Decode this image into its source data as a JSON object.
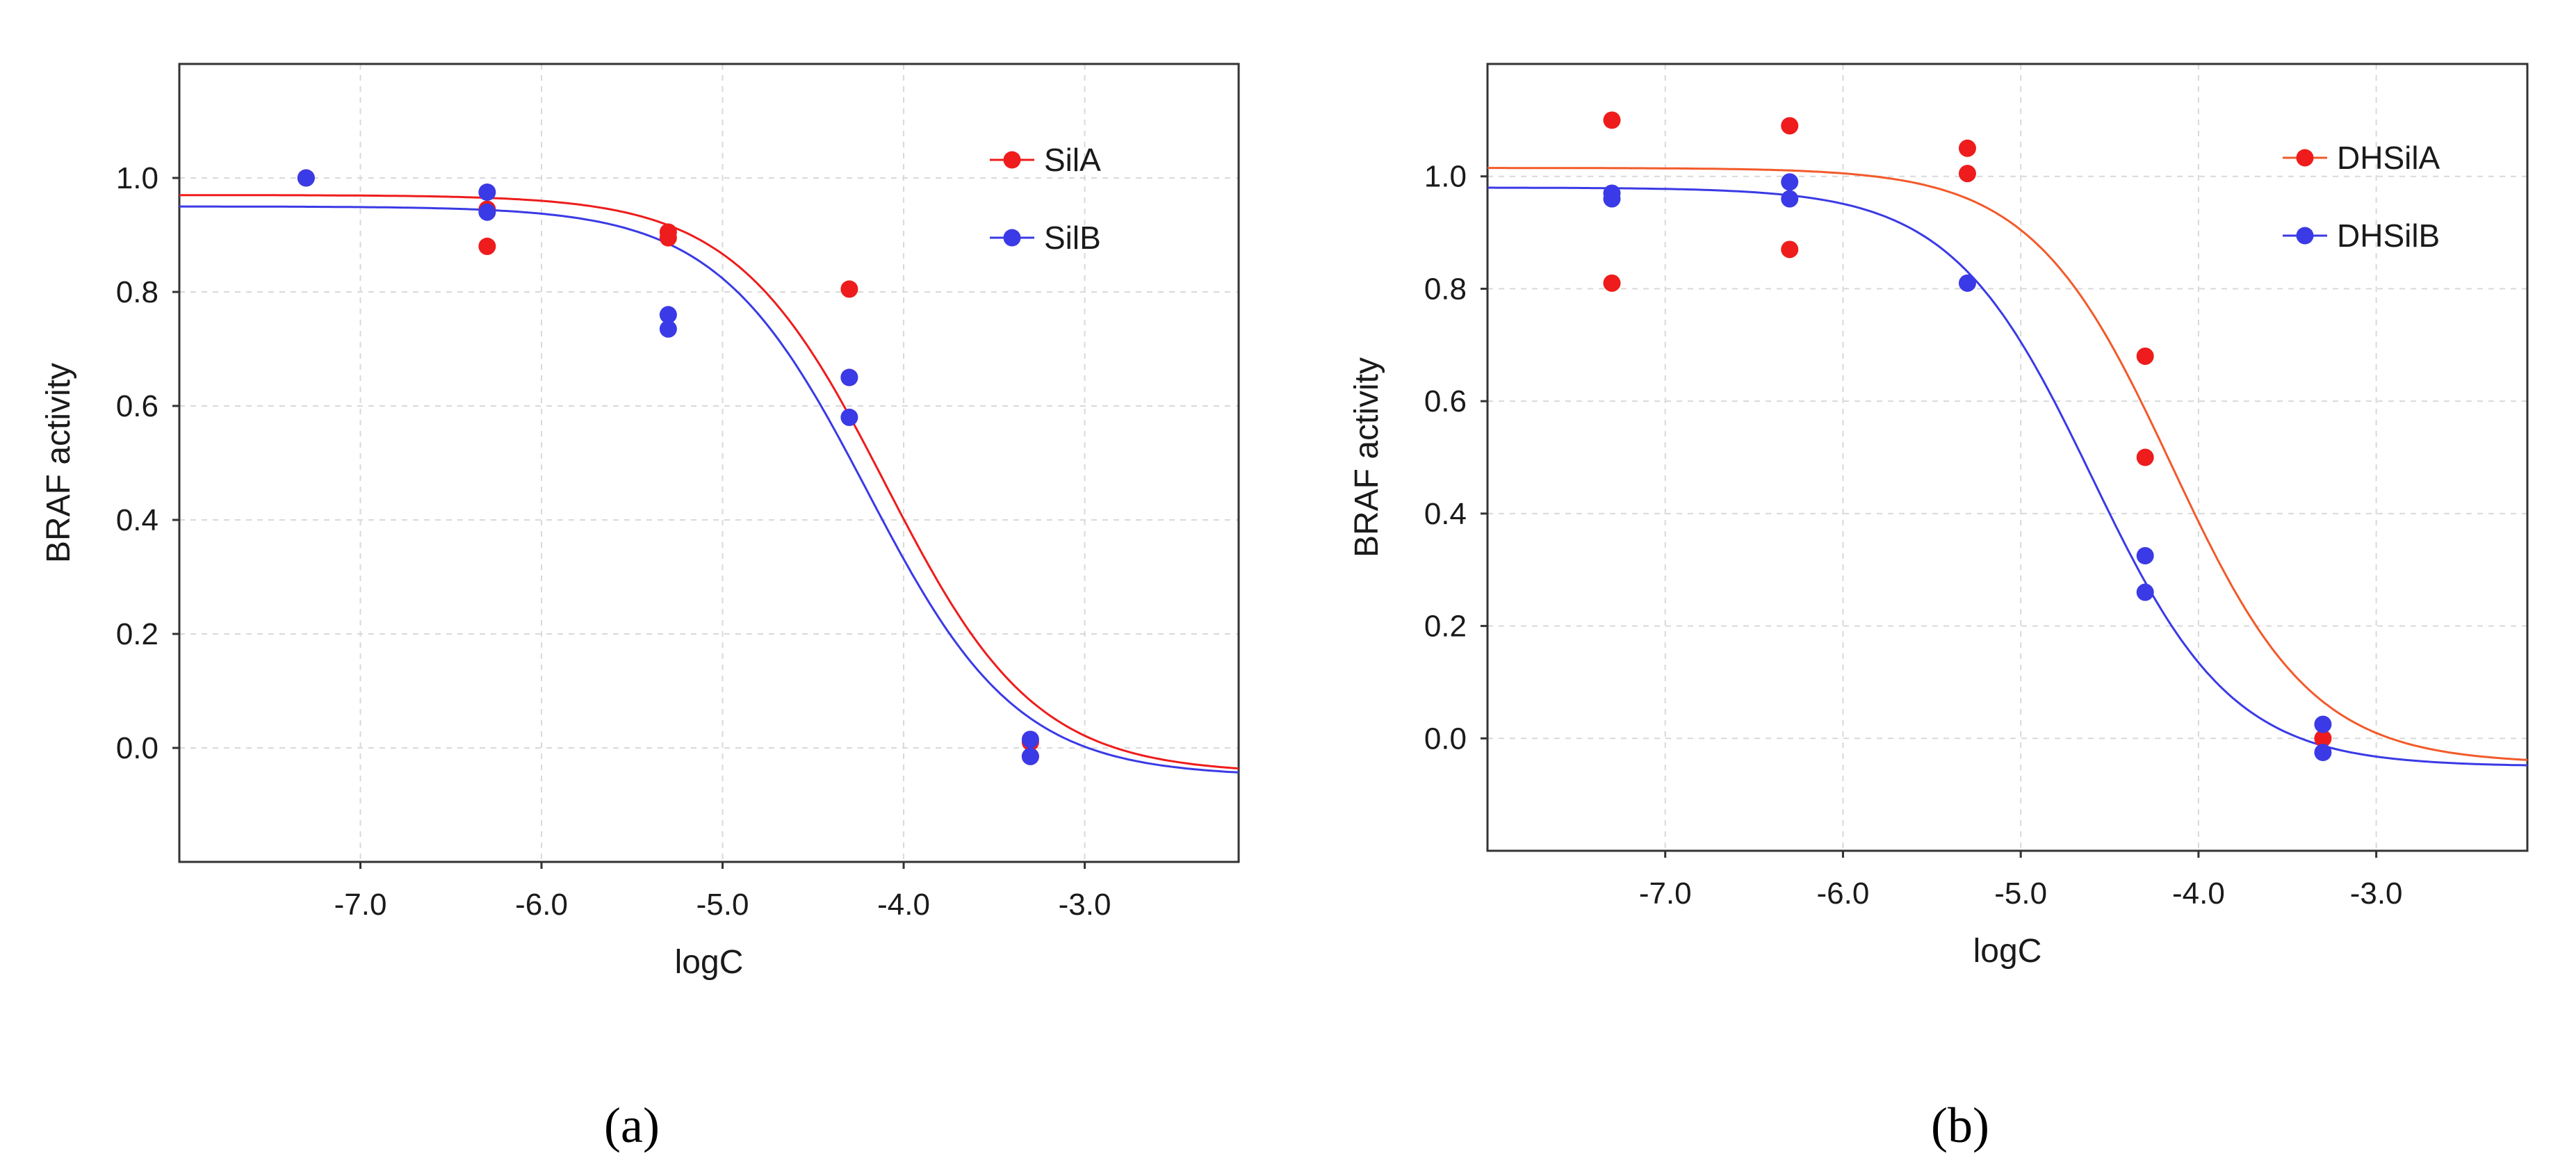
{
  "figure": {
    "panel_labels": [
      "(a)",
      "(b)"
    ]
  },
  "chart_data": [
    {
      "type": "scatter",
      "id": "a",
      "title": "",
      "xlabel": "logC",
      "ylabel": "BRAF activity",
      "xlim": [
        -8.0,
        -2.15
      ],
      "ylim": [
        -0.2,
        1.2
      ],
      "xticks": [
        -7.0,
        -6.0,
        -5.0,
        -4.0,
        -3.0
      ],
      "xtick_labels": [
        "-7.0",
        "-6.0",
        "-5.0",
        "-4.0",
        "-3.0"
      ],
      "yticks": [
        0.0,
        0.2,
        0.4,
        0.6,
        0.8,
        1.0
      ],
      "ytick_labels": [
        "0.0",
        "0.2",
        "0.4",
        "0.6",
        "0.8",
        "1.0"
      ],
      "grid": true,
      "legend_position": "top-right",
      "series": [
        {
          "name": "SilA",
          "color": "#ee1c1c",
          "points": [
            [
              -7.3,
              1.0
            ],
            [
              -6.3,
              0.945
            ],
            [
              -6.3,
              0.88
            ],
            [
              -5.3,
              0.905
            ],
            [
              -5.3,
              0.895
            ],
            [
              -4.3,
              0.805
            ],
            [
              -4.3,
              0.65
            ],
            [
              -3.3,
              0.01
            ],
            [
              -3.3,
              -0.015
            ]
          ],
          "fit": {
            "top": 0.97,
            "bottom": -0.045,
            "logIC50": -4.1,
            "hill": 1.05
          }
        },
        {
          "name": "SilB",
          "color": "#3a3ae6",
          "points": [
            [
              -7.3,
              1.0
            ],
            [
              -6.3,
              0.975
            ],
            [
              -6.3,
              0.94
            ],
            [
              -5.3,
              0.76
            ],
            [
              -5.3,
              0.735
            ],
            [
              -4.3,
              0.65
            ],
            [
              -4.3,
              0.58
            ],
            [
              -3.3,
              0.015
            ],
            [
              -3.3,
              -0.015
            ]
          ],
          "fit": {
            "top": 0.95,
            "bottom": -0.05,
            "logIC50": -4.2,
            "hill": 1.05
          }
        }
      ]
    },
    {
      "type": "scatter",
      "id": "b",
      "title": "",
      "xlabel": "logC",
      "ylabel": "BRAF activity",
      "xlim": [
        -8.0,
        -2.15
      ],
      "ylim": [
        -0.2,
        1.2
      ],
      "xticks": [
        -7.0,
        -6.0,
        -5.0,
        -4.0,
        -3.0
      ],
      "xtick_labels": [
        "-7.0",
        "-6.0",
        "-5.0",
        "-4.0",
        "-3.0"
      ],
      "yticks": [
        0.0,
        0.2,
        0.4,
        0.6,
        0.8,
        1.0
      ],
      "ytick_labels": [
        "0.0",
        "0.2",
        "0.4",
        "0.6",
        "0.8",
        "1.0"
      ],
      "grid": true,
      "legend_position": "top-right",
      "series": [
        {
          "name": "DHSilA",
          "color": "#ee1c1c",
          "line_color": "#f25a2a",
          "points": [
            [
              -7.3,
              1.1
            ],
            [
              -7.3,
              0.81
            ],
            [
              -6.3,
              1.09
            ],
            [
              -6.3,
              0.87
            ],
            [
              -5.3,
              1.05
            ],
            [
              -5.3,
              1.005
            ],
            [
              -4.3,
              0.68
            ],
            [
              -4.3,
              0.5
            ],
            [
              -3.3,
              0.0
            ]
          ],
          "fit": {
            "top": 1.015,
            "bottom": -0.045,
            "logIC50": -4.15,
            "hill": 1.1
          }
        },
        {
          "name": "DHSilB",
          "color": "#3a3ae6",
          "points": [
            [
              -7.3,
              0.97
            ],
            [
              -7.3,
              0.96
            ],
            [
              -6.3,
              0.99
            ],
            [
              -6.3,
              0.96
            ],
            [
              -5.3,
              0.81
            ],
            [
              -4.3,
              0.325
            ],
            [
              -4.3,
              0.26
            ],
            [
              -3.3,
              0.025
            ],
            [
              -3.3,
              -0.025
            ]
          ],
          "fit": {
            "top": 0.98,
            "bottom": -0.05,
            "logIC50": -4.6,
            "hill": 1.1
          }
        }
      ]
    }
  ]
}
